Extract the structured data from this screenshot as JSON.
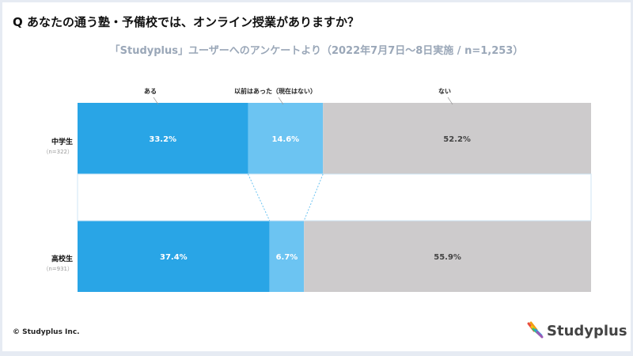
{
  "header": {
    "title": "Q あなたの通う塾・予備校では、オンライン授業がありますか？",
    "subtitle": "「Studyplus」ユーザーへのアンケートより（2022年7月7日〜8日実施 / n=1,253）"
  },
  "chart_data": {
    "type": "bar",
    "stacked": true,
    "orientation": "horizontal",
    "unit": "%",
    "categories": [
      "中学生",
      "高校生"
    ],
    "category_n": [
      "（n=322）",
      "（n=931）"
    ],
    "series": [
      {
        "name": "ある",
        "values": [
          33.2,
          37.4
        ],
        "color": "#29a5e6",
        "labels": [
          "33.2%",
          "37.4%"
        ]
      },
      {
        "name": "以前はあった（現在はない）",
        "values": [
          14.6,
          6.7
        ],
        "color": "#6cc4f2",
        "labels": [
          "14.6%",
          "6.7%"
        ]
      },
      {
        "name": "ない",
        "values": [
          52.2,
          55.9
        ],
        "color": "#cdcbcc",
        "labels": [
          "52.2%",
          "55.9%"
        ]
      }
    ],
    "xlim": [
      0,
      100
    ]
  },
  "footer": {
    "copyright": "© Studyplus Inc.",
    "logo": "Studyplus"
  }
}
